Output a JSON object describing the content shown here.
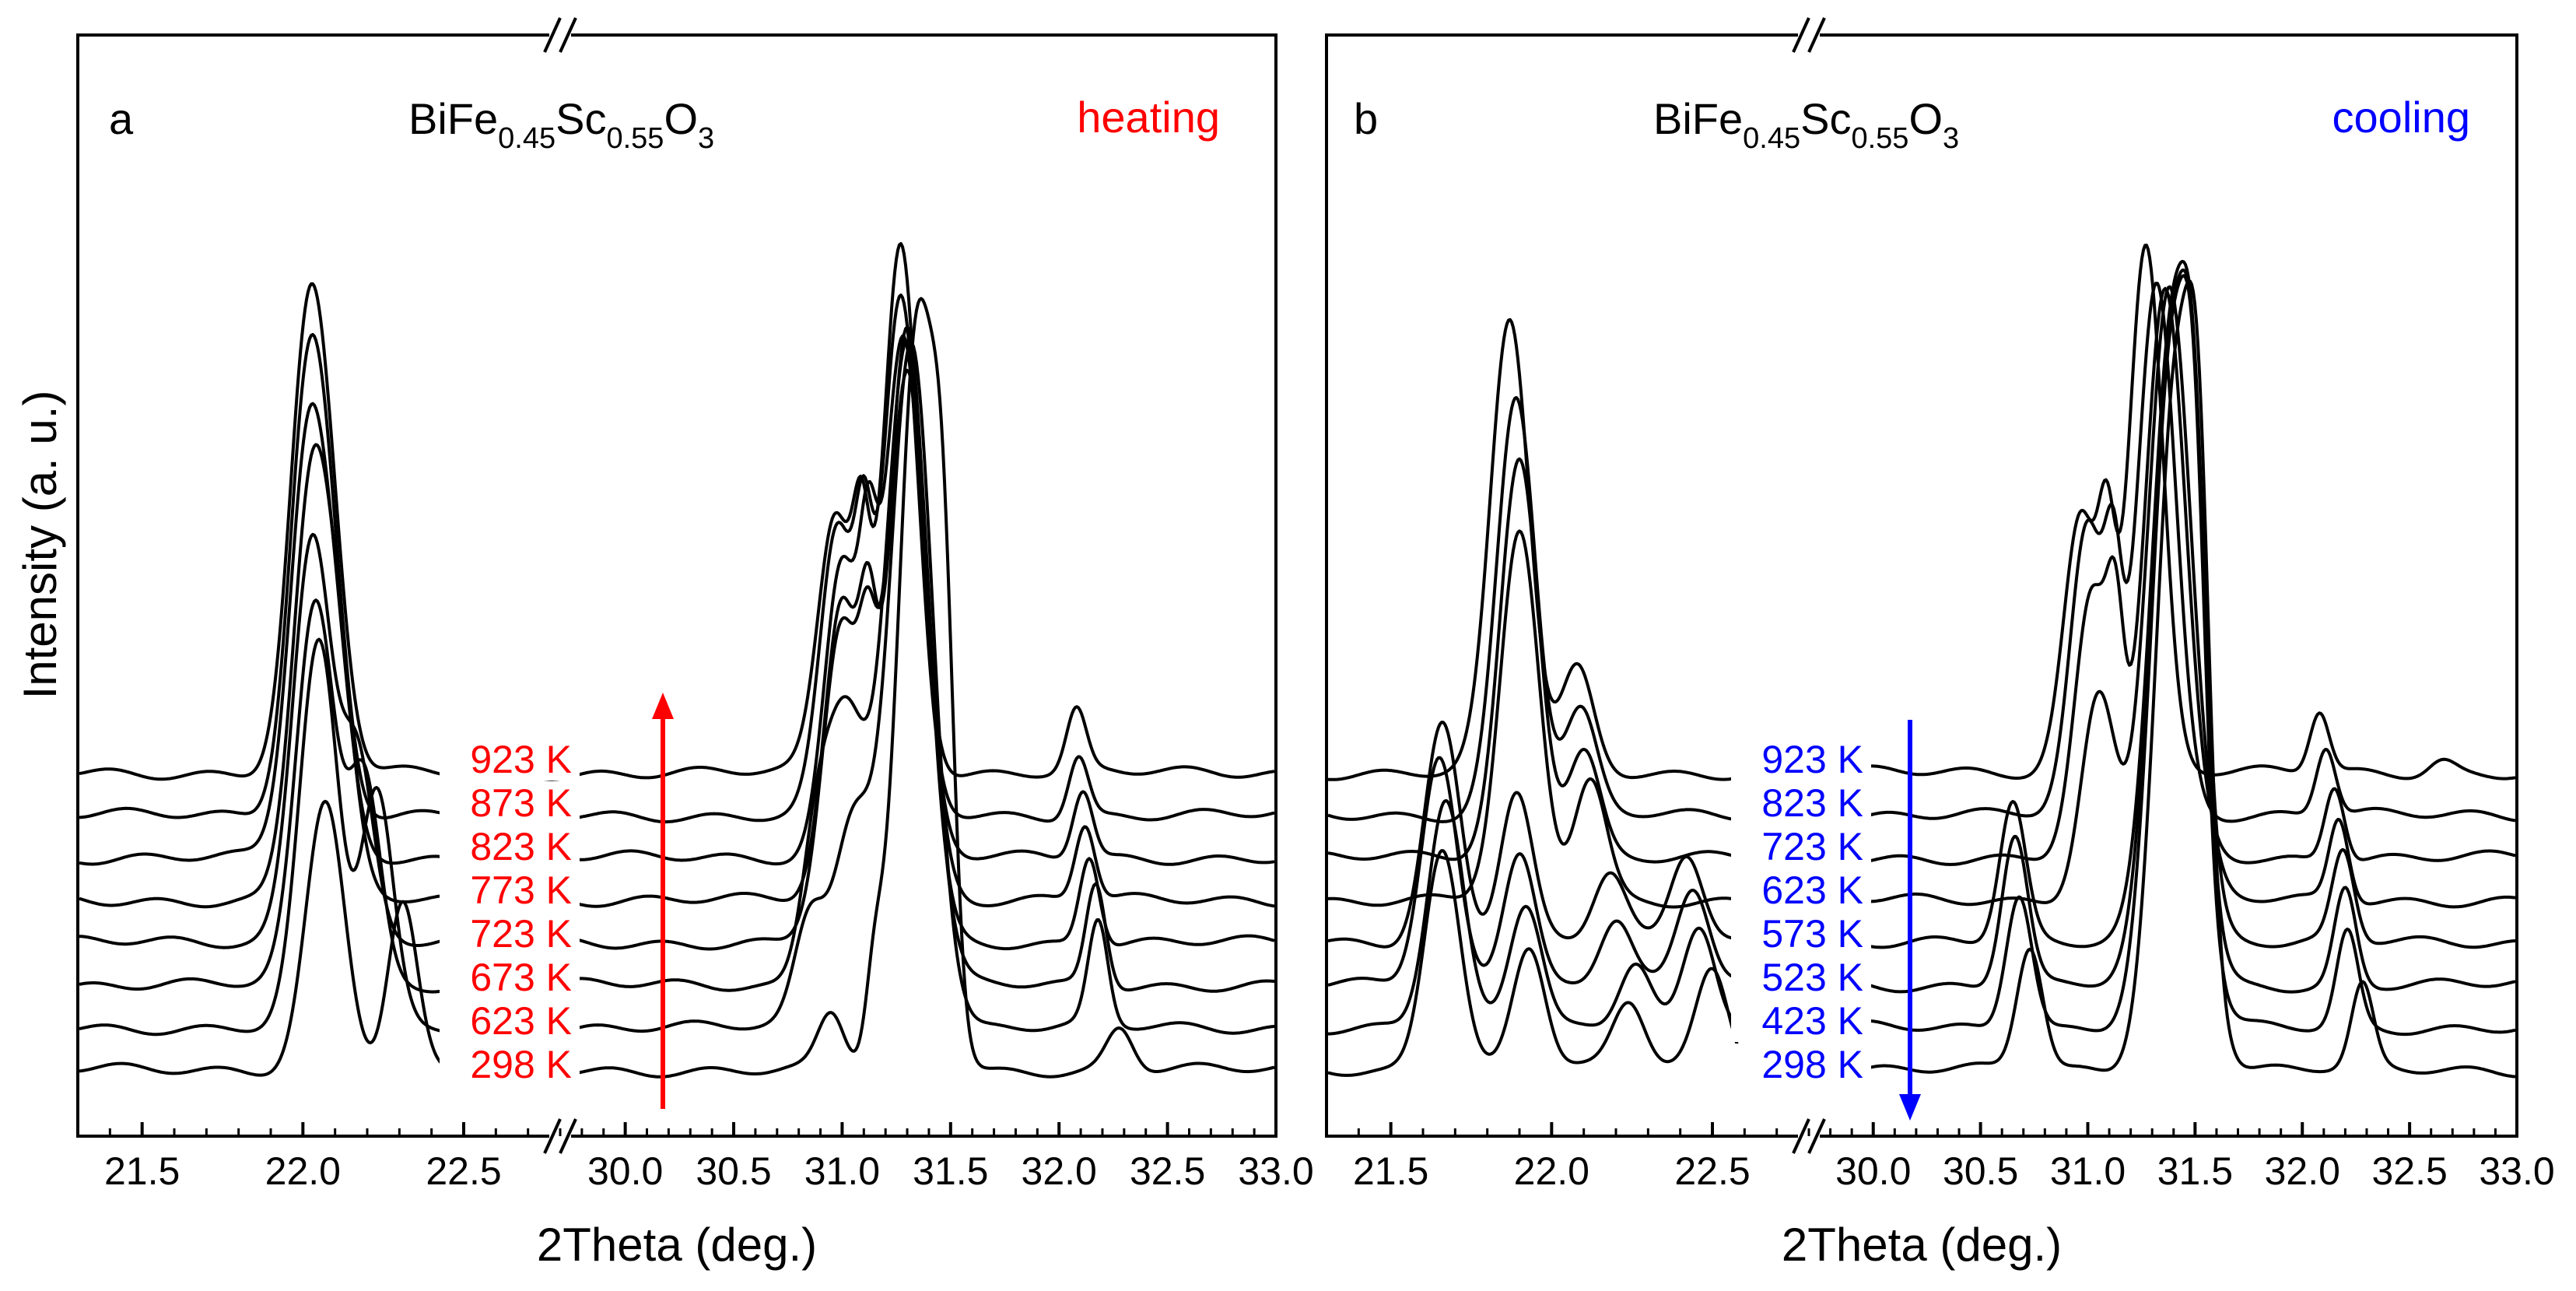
{
  "y_axis_label": "Intensity (a. u.)",
  "chart_data": [
    {
      "type": "line",
      "panel_label": "a",
      "compound": {
        "base1": "BiFe",
        "sub1": "0.45",
        "base2": "Sc",
        "sub2": "0.55",
        "base3": "O",
        "sub3": "3"
      },
      "mode_label": "heating",
      "mode_color": "#ff0000",
      "arrow_direction": "up",
      "xlabel": "2Theta (deg.)",
      "ylabel": "Intensity (a. u.)",
      "x_broken_axis": true,
      "x_segments": [
        [
          21.3,
          22.8
        ],
        [
          29.7,
          33.0
        ]
      ],
      "xticks": [
        "21.5",
        "22.0",
        "22.5",
        "30.0",
        "30.5",
        "31.0",
        "31.5",
        "32.0",
        "32.5",
        "33.0"
      ],
      "xtick_values": [
        21.5,
        22.0,
        22.5,
        30.0,
        30.5,
        31.0,
        31.5,
        32.0,
        32.5,
        33.0
      ],
      "y_ticks_shown": false,
      "series_labels": [
        "923 K",
        "873 K",
        "823 K",
        "773 K",
        "723 K",
        "673 K",
        "623 K",
        "298 K"
      ],
      "series": [
        {
          "temperature": 298,
          "name": "298 K",
          "offset": 0,
          "peaks": [
            [
              22.07,
              390,
              0.06
            ],
            [
              22.31,
              240,
              0.045
            ],
            [
              31.35,
              1090,
              0.09
            ],
            [
              31.47,
              430,
              0.05
            ],
            [
              31.15,
              120,
              0.04
            ],
            [
              30.95,
              80,
              0.06
            ],
            [
              32.28,
              60,
              0.06
            ]
          ]
        },
        {
          "temperature": 623,
          "name": "623 K",
          "offset": 62,
          "peaks": [
            [
              22.05,
              560,
              0.06
            ],
            [
              22.23,
              340,
              0.05
            ],
            [
              31.32,
              1000,
              0.1
            ],
            [
              31.05,
              300,
              0.09
            ],
            [
              30.85,
              150,
              0.07
            ],
            [
              32.18,
              150,
              0.045
            ]
          ]
        },
        {
          "temperature": 673,
          "name": "673 K",
          "offset": 124,
          "peaks": [
            [
              22.04,
              560,
              0.06
            ],
            [
              22.19,
              300,
              0.05
            ],
            [
              31.3,
              940,
              0.1
            ],
            [
              31.02,
              380,
              0.09
            ],
            [
              30.88,
              190,
              0.07
            ],
            [
              32.17,
              150,
              0.045
            ]
          ]
        },
        {
          "temperature": 723,
          "name": "723 K",
          "offset": 186,
          "peaks": [
            [
              22.03,
              600,
              0.06
            ],
            [
              22.17,
              260,
              0.05
            ],
            [
              31.3,
              900,
              0.09
            ],
            [
              31.0,
              460,
              0.09
            ],
            [
              31.12,
              200,
              0.04
            ],
            [
              32.14,
              130,
              0.045
            ]
          ]
        },
        {
          "temperature": 773,
          "name": "773 K",
          "offset": 248,
          "peaks": [
            [
              22.03,
              620,
              0.06
            ],
            [
              22.12,
              200,
              0.05
            ],
            [
              31.3,
              780,
              0.09
            ],
            [
              31.0,
              430,
              0.08
            ],
            [
              31.12,
              250,
              0.04
            ],
            [
              32.12,
              110,
              0.045
            ]
          ]
        },
        {
          "temperature": 823,
          "name": "823 K",
          "offset": 310,
          "peaks": [
            [
              22.02,
              620,
              0.06
            ],
            [
              22.11,
              180,
              0.05
            ],
            [
              31.28,
              760,
              0.09
            ],
            [
              31.0,
              430,
              0.08
            ],
            [
              31.12,
              260,
              0.04
            ],
            [
              32.11,
              100,
              0.045
            ]
          ]
        },
        {
          "temperature": 873,
          "name": "873 K",
          "offset": 372,
          "peaks": [
            [
              22.02,
              650,
              0.06
            ],
            [
              22.1,
              160,
              0.05
            ],
            [
              31.27,
              750,
              0.085
            ],
            [
              30.98,
              420,
              0.08
            ],
            [
              31.1,
              260,
              0.04
            ],
            [
              32.09,
              90,
              0.045
            ]
          ]
        },
        {
          "temperature": 923,
          "name": "923 K",
          "offset": 434,
          "peaks": [
            [
              22.02,
              660,
              0.06
            ],
            [
              22.1,
              150,
              0.05
            ],
            [
              31.27,
              770,
              0.08
            ],
            [
              30.97,
              380,
              0.08
            ],
            [
              31.09,
              250,
              0.04
            ],
            [
              32.08,
              90,
              0.045
            ]
          ]
        }
      ]
    },
    {
      "type": "line",
      "panel_label": "b",
      "compound": {
        "base1": "BiFe",
        "sub1": "0.45",
        "base2": "Sc",
        "sub2": "0.55",
        "base3": "O",
        "sub3": "3"
      },
      "mode_label": "cooling",
      "mode_color": "#0000ff",
      "arrow_direction": "down",
      "xlabel": "2Theta (deg.)",
      "ylabel": "",
      "x_broken_axis": true,
      "x_segments": [
        [
          21.3,
          22.8
        ],
        [
          29.7,
          33.0
        ]
      ],
      "xticks": [
        "21.5",
        "22.0",
        "22.5",
        "30.0",
        "30.5",
        "31.0",
        "31.5",
        "32.0",
        "32.5",
        "33.0"
      ],
      "xtick_values": [
        21.5,
        22.0,
        22.5,
        30.0,
        30.5,
        31.0,
        31.5,
        32.0,
        32.5,
        33.0
      ],
      "y_ticks_shown": false,
      "series_labels": [
        "923 K",
        "823 K",
        "723 K",
        "623 K",
        "573 K",
        "523 K",
        "423 K",
        "298 K"
      ],
      "series": [
        {
          "temperature": 298,
          "name": "298 K",
          "offset": 0,
          "peaks": [
            [
              21.66,
              330,
              0.055
            ],
            [
              21.93,
              180,
              0.05
            ],
            [
              22.24,
              100,
              0.05
            ],
            [
              22.5,
              150,
              0.05
            ],
            [
              30.73,
              180,
              0.06
            ],
            [
              31.42,
              1030,
              0.1
            ],
            [
              31.52,
              400,
              0.05
            ],
            [
              32.28,
              120,
              0.05
            ]
          ]
        },
        {
          "temperature": 423,
          "name": "423 K",
          "offset": 62,
          "peaks": [
            [
              21.67,
              330,
              0.055
            ],
            [
              21.92,
              180,
              0.05
            ],
            [
              22.26,
              100,
              0.05
            ],
            [
              22.46,
              150,
              0.05
            ],
            [
              30.68,
              200,
              0.06
            ],
            [
              31.4,
              1000,
              0.1
            ],
            [
              31.5,
              350,
              0.05
            ],
            [
              32.21,
              140,
              0.05
            ]
          ]
        },
        {
          "temperature": 523,
          "name": "523 K",
          "offset": 124,
          "peaks": [
            [
              21.65,
              330,
              0.055
            ],
            [
              21.9,
              200,
              0.05
            ],
            [
              22.2,
              100,
              0.05
            ],
            [
              22.44,
              140,
              0.05
            ],
            [
              30.66,
              220,
              0.06
            ],
            [
              31.4,
              960,
              0.1
            ],
            [
              31.5,
              330,
              0.05
            ],
            [
              32.2,
              140,
              0.05
            ]
          ]
        },
        {
          "temperature": 573,
          "name": "573 K",
          "offset": 186,
          "peaks": [
            [
              21.66,
              320,
              0.055
            ],
            [
              21.89,
              220,
              0.05
            ],
            [
              22.18,
              100,
              0.05
            ],
            [
              22.42,
              130,
              0.05
            ],
            [
              30.65,
              200,
              0.06
            ],
            [
              31.4,
              930,
              0.1
            ],
            [
              31.5,
              300,
              0.05
            ],
            [
              32.19,
              130,
              0.05
            ]
          ]
        },
        {
          "temperature": 623,
          "name": "623 K",
          "offset": 248,
          "peaks": [
            [
              21.9,
              530,
              0.06
            ],
            [
              22.12,
              180,
              0.05
            ],
            [
              31.38,
              900,
              0.1
            ],
            [
              31.05,
              300,
              0.08
            ],
            [
              32.17,
              120,
              0.045
            ]
          ]
        },
        {
          "temperature": 723,
          "name": "723 K",
          "offset": 310,
          "peaks": [
            [
              21.9,
              580,
              0.06
            ],
            [
              22.1,
              160,
              0.05
            ],
            [
              31.36,
              830,
              0.095
            ],
            [
              31.02,
              380,
              0.08
            ],
            [
              31.13,
              230,
              0.04
            ],
            [
              32.15,
              110,
              0.045
            ]
          ]
        },
        {
          "temperature": 823,
          "name": "823 K",
          "offset": 372,
          "peaks": [
            [
              21.89,
              610,
              0.06
            ],
            [
              22.09,
              150,
              0.05
            ],
            [
              31.32,
              780,
              0.09
            ],
            [
              31.0,
              420,
              0.08
            ],
            [
              31.12,
              250,
              0.04
            ],
            [
              32.11,
              100,
              0.045
            ]
          ]
        },
        {
          "temperature": 923,
          "name": "923 K",
          "offset": 434,
          "peaks": [
            [
              21.87,
              660,
              0.06
            ],
            [
              22.08,
              150,
              0.05
            ],
            [
              31.27,
              770,
              0.08
            ],
            [
              30.97,
              380,
              0.08
            ],
            [
              31.09,
              250,
              0.04
            ],
            [
              32.08,
              90,
              0.045
            ],
            [
              32.65,
              20,
              0.06
            ]
          ]
        }
      ]
    }
  ]
}
